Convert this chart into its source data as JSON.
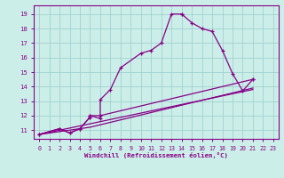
{
  "xlabel": "Windchill (Refroidissement éolien,°C)",
  "bg_color": "#cceee8",
  "line_color": "#880088",
  "grid_color": "#99cccc",
  "xlim": [
    -0.5,
    23.5
  ],
  "ylim": [
    10.4,
    19.6
  ],
  "xticks": [
    0,
    1,
    2,
    3,
    4,
    5,
    6,
    7,
    8,
    9,
    10,
    11,
    12,
    13,
    14,
    15,
    16,
    17,
    18,
    19,
    20,
    21,
    22,
    23
  ],
  "yticks": [
    11,
    12,
    13,
    14,
    15,
    16,
    17,
    18,
    19
  ],
  "series1": [
    [
      0,
      10.7
    ],
    [
      2,
      11.1
    ],
    [
      3,
      10.8
    ],
    [
      4,
      11.1
    ],
    [
      5,
      11.9
    ],
    [
      5,
      12.0
    ],
    [
      6,
      11.8
    ],
    [
      6,
      13.1
    ],
    [
      7,
      13.8
    ],
    [
      8,
      15.3
    ],
    [
      10,
      16.3
    ],
    [
      11,
      16.5
    ],
    [
      12,
      17.0
    ],
    [
      13,
      19.0
    ],
    [
      14,
      19.0
    ],
    [
      14,
      19.0
    ],
    [
      15,
      18.4
    ],
    [
      16,
      18.0
    ],
    [
      17,
      17.8
    ],
    [
      18,
      16.5
    ],
    [
      19,
      14.9
    ],
    [
      20,
      13.7
    ],
    [
      21,
      14.5
    ]
  ],
  "series2": [
    [
      0,
      10.7
    ],
    [
      2,
      11.1
    ],
    [
      3,
      10.8
    ],
    [
      4,
      11.1
    ],
    [
      5,
      11.9
    ],
    [
      5,
      12.0
    ],
    [
      6,
      12.0
    ],
    [
      21,
      14.5
    ]
  ],
  "series3": [
    [
      0,
      10.7
    ],
    [
      21,
      13.8
    ]
  ],
  "series4": [
    [
      0,
      10.7
    ],
    [
      5,
      11.2
    ],
    [
      21,
      13.9
    ]
  ]
}
